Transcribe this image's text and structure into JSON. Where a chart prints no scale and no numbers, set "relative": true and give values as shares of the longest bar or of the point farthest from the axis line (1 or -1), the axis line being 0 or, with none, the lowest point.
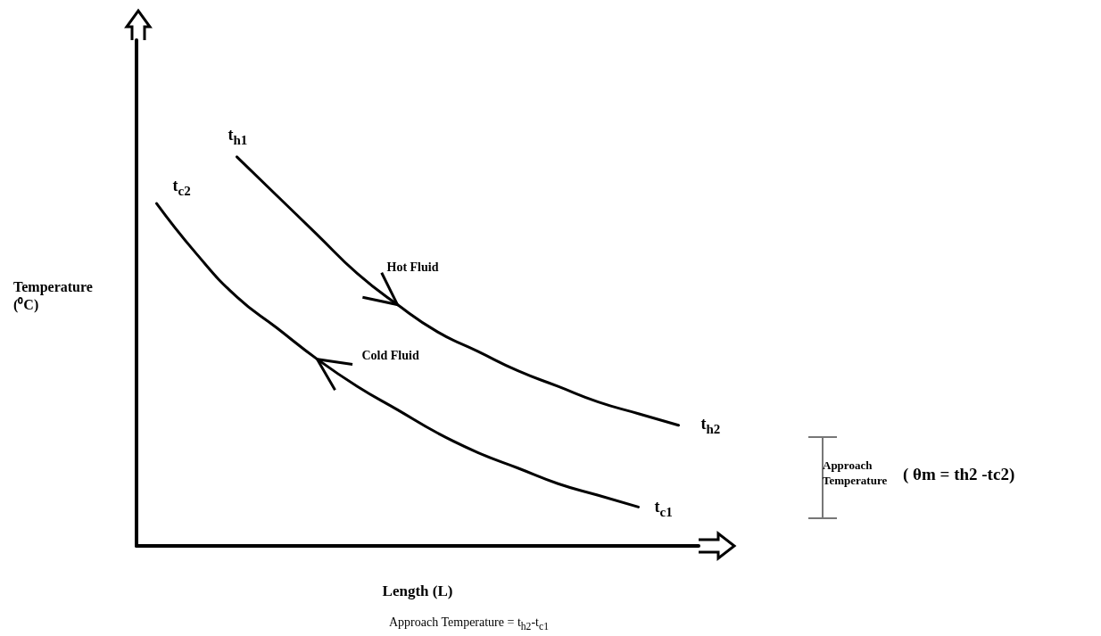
{
  "chart_data": {
    "type": "line",
    "relative": true,
    "xlabel": "Length (L)",
    "ylabel": "Temperature (⁰C)",
    "categories": [
      null,
      null,
      null,
      null,
      null,
      null,
      null,
      null,
      null,
      null,
      null,
      null,
      null,
      null
    ],
    "series": [
      {
        "name": "Hot Fluid",
        "color": "#000000",
        "values": [
          null,
          null,
          1.0,
          0.9,
          0.8,
          0.7,
          0.62,
          0.55,
          0.5,
          0.45,
          0.41,
          0.37,
          0.34,
          0.31
        ]
      },
      {
        "name": "Cold Fluid",
        "color": "#000000",
        "values": [
          0.88,
          0.75,
          0.64,
          0.56,
          0.48,
          0.41,
          0.35,
          0.29,
          0.24,
          0.2,
          0.16,
          0.13,
          0.1,
          null
        ]
      }
    ],
    "annotations": [
      "t$_{h1}$",
      "t$_{c2}$",
      "t$_{h2}$",
      "t$_{c1}$",
      "Approach Temperature",
      "( θm = th2 -tc2)",
      "Approach Temperature = t$_{h2}$-t$_{c1}$"
    ],
    "grid": false,
    "legend": false,
    "marker": "none",
    "line_style": "solid"
  }
}
